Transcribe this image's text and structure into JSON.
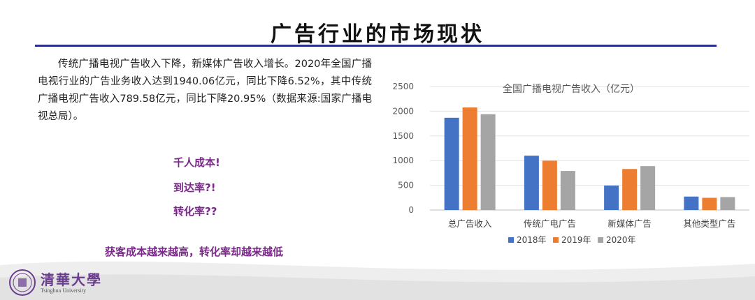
{
  "slide": {
    "title": "广告行业的市场现状",
    "paragraph": "传统广播电视广告收入下降，新媒体广告收入增长。2020年全国广播电视行业的广告业务收入达到1940.06亿元，同比下降6.52%，其中传统广播电视广告收入789.58亿元，同比下降20.95%（数据来源:国家广播电视总局）。",
    "callouts": [
      "千人成本!",
      "到达率?!",
      "转化率??"
    ],
    "conclusion": "获客成本越来越高，转化率却越来越低",
    "logo": {
      "name": "清華大學",
      "subtitle": "Tsinghua University",
      "icon": "tsinghua-seal-icon"
    }
  },
  "chart_data": {
    "type": "bar",
    "title": "全国广播电视广告收入（亿元）",
    "categories": [
      "总广告收入",
      "传统广电广告",
      "新媒体广告",
      "其他类型广告"
    ],
    "series": [
      {
        "name": "2018年",
        "color": "#4472c4",
        "values": [
          1867,
          1100,
          495,
          272
        ]
      },
      {
        "name": "2019年",
        "color": "#ed7d31",
        "values": [
          2076,
          999,
          830,
          247
        ]
      },
      {
        "name": "2020年",
        "color": "#a5a5a5",
        "values": [
          1940,
          790,
          888,
          262
        ]
      }
    ],
    "ylim": [
      0,
      2500
    ],
    "yticks": [
      0,
      500,
      1000,
      1500,
      2000,
      2500
    ],
    "grid": true,
    "legend": "bottom"
  }
}
